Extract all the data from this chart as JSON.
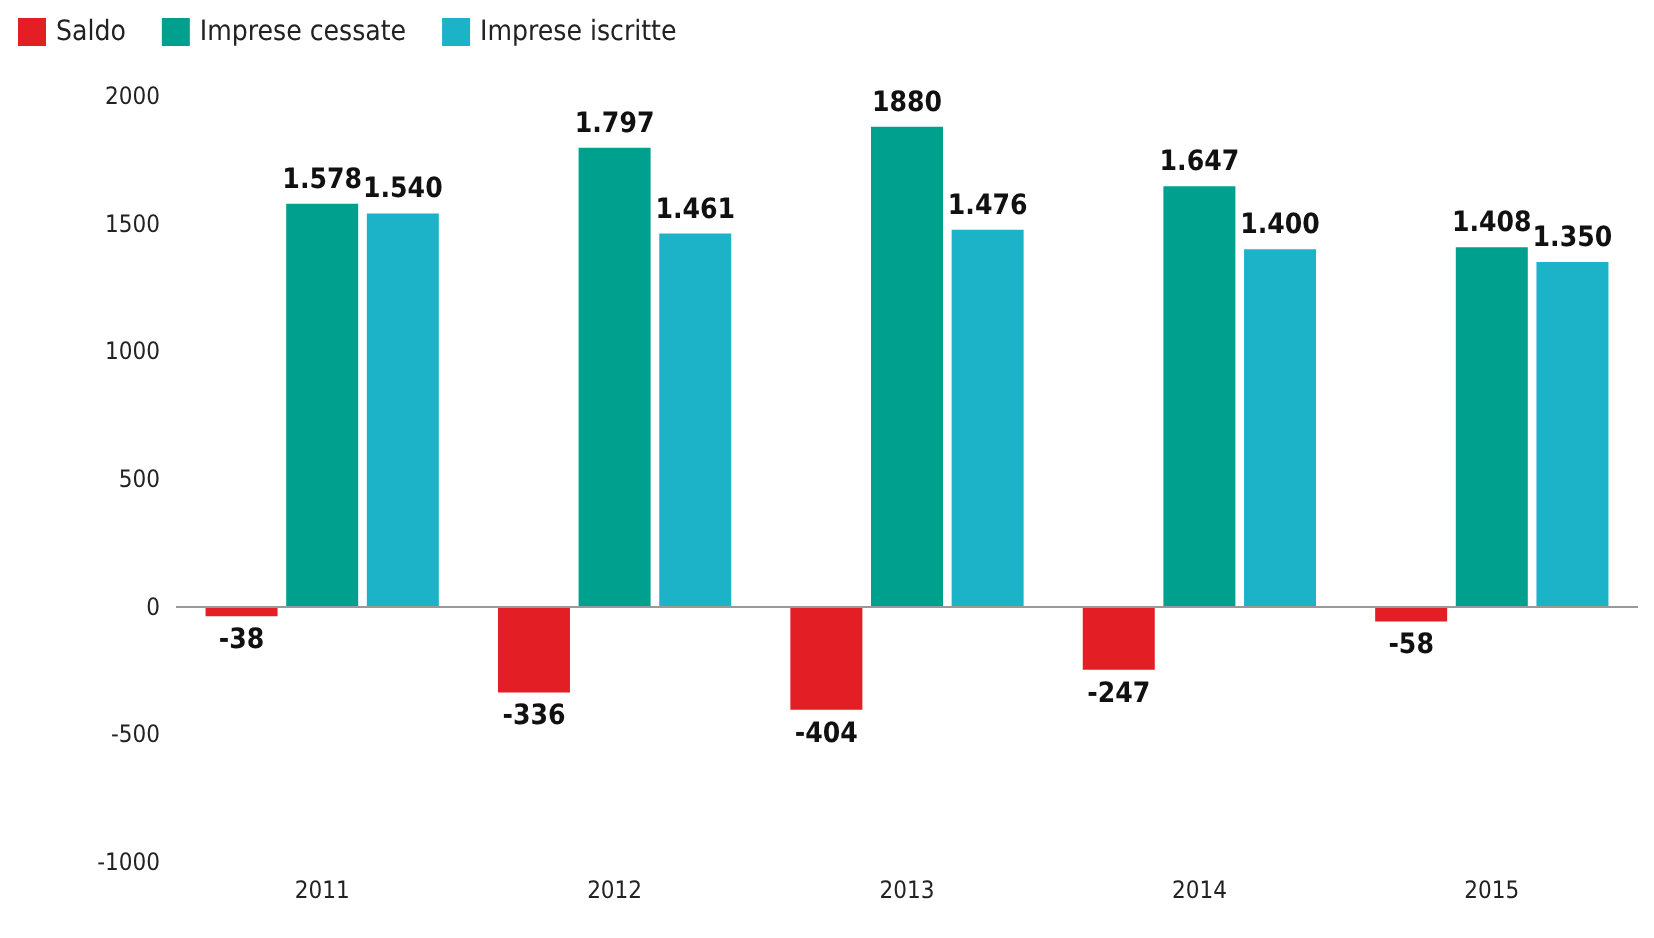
{
  "chart_data": {
    "type": "bar",
    "categories": [
      "2011",
      "2012",
      "2013",
      "2014",
      "2015"
    ],
    "series": [
      {
        "name": "Saldo",
        "color": "#e31e24",
        "values": [
          -38,
          -336,
          -404,
          -247,
          -58
        ],
        "value_labels": [
          "-38",
          "-336",
          "-404",
          "-247",
          "-58"
        ]
      },
      {
        "name": "Imprese cessate",
        "color": "#00a08e",
        "values": [
          1578,
          1797,
          1880,
          1647,
          1408
        ],
        "value_labels": [
          "1.578",
          "1.797",
          "1880",
          "1.647",
          "1.408"
        ]
      },
      {
        "name": "Imprese iscritte",
        "color": "#1cb3c9",
        "values": [
          1540,
          1461,
          1476,
          1400,
          1350
        ],
        "value_labels": [
          "1.540",
          "1.461",
          "1.476",
          "1.400",
          "1.350"
        ]
      }
    ],
    "ylim": [
      -1000,
      2000
    ],
    "yticks": [
      -1000,
      -500,
      0,
      500,
      1000,
      1500,
      2000
    ],
    "legend": "top left",
    "ref_lines": [
      {
        "axis": "y",
        "value": 0,
        "color": "#999999"
      }
    ]
  }
}
